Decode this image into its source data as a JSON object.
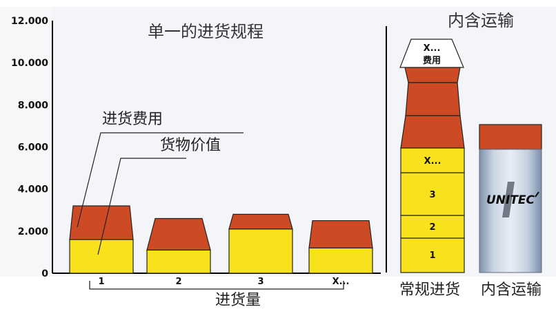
{
  "left_panel": {
    "title": "单一的进货规程",
    "y_axis_ticks": [
      "12.000",
      "10.000",
      "8.000",
      "6.000",
      "4.000",
      "2.000",
      "0"
    ],
    "labels": {
      "shipping_cost": "进货费用",
      "goods_value": "货物价值"
    },
    "x_axis_label": "进货量",
    "bars": [
      {
        "label": "1",
        "goods_value": 1600,
        "shipping_cost": 1600
      },
      {
        "label": "2",
        "goods_value": 1100,
        "shipping_cost": 1500
      },
      {
        "label": "3",
        "goods_value": 2100,
        "shipping_cost": 700
      },
      {
        "label": "X...",
        "goods_value": 1200,
        "shipping_cost": 1300
      }
    ]
  },
  "right_panel": {
    "title": "内含运输",
    "regular_stack": {
      "label": "常规进货",
      "goods_segments": [
        "1",
        "2",
        "3",
        "X..."
      ],
      "top_cap_label": "X...",
      "top_cap_sublabel": "费用"
    },
    "included_stack": {
      "label": "内含运输",
      "logo_text": "UNITEC"
    }
  },
  "colors": {
    "goods": "#f8e21c",
    "shipping": "#cc4a24",
    "container": "#b8c6d8",
    "axis": "#000000"
  }
}
